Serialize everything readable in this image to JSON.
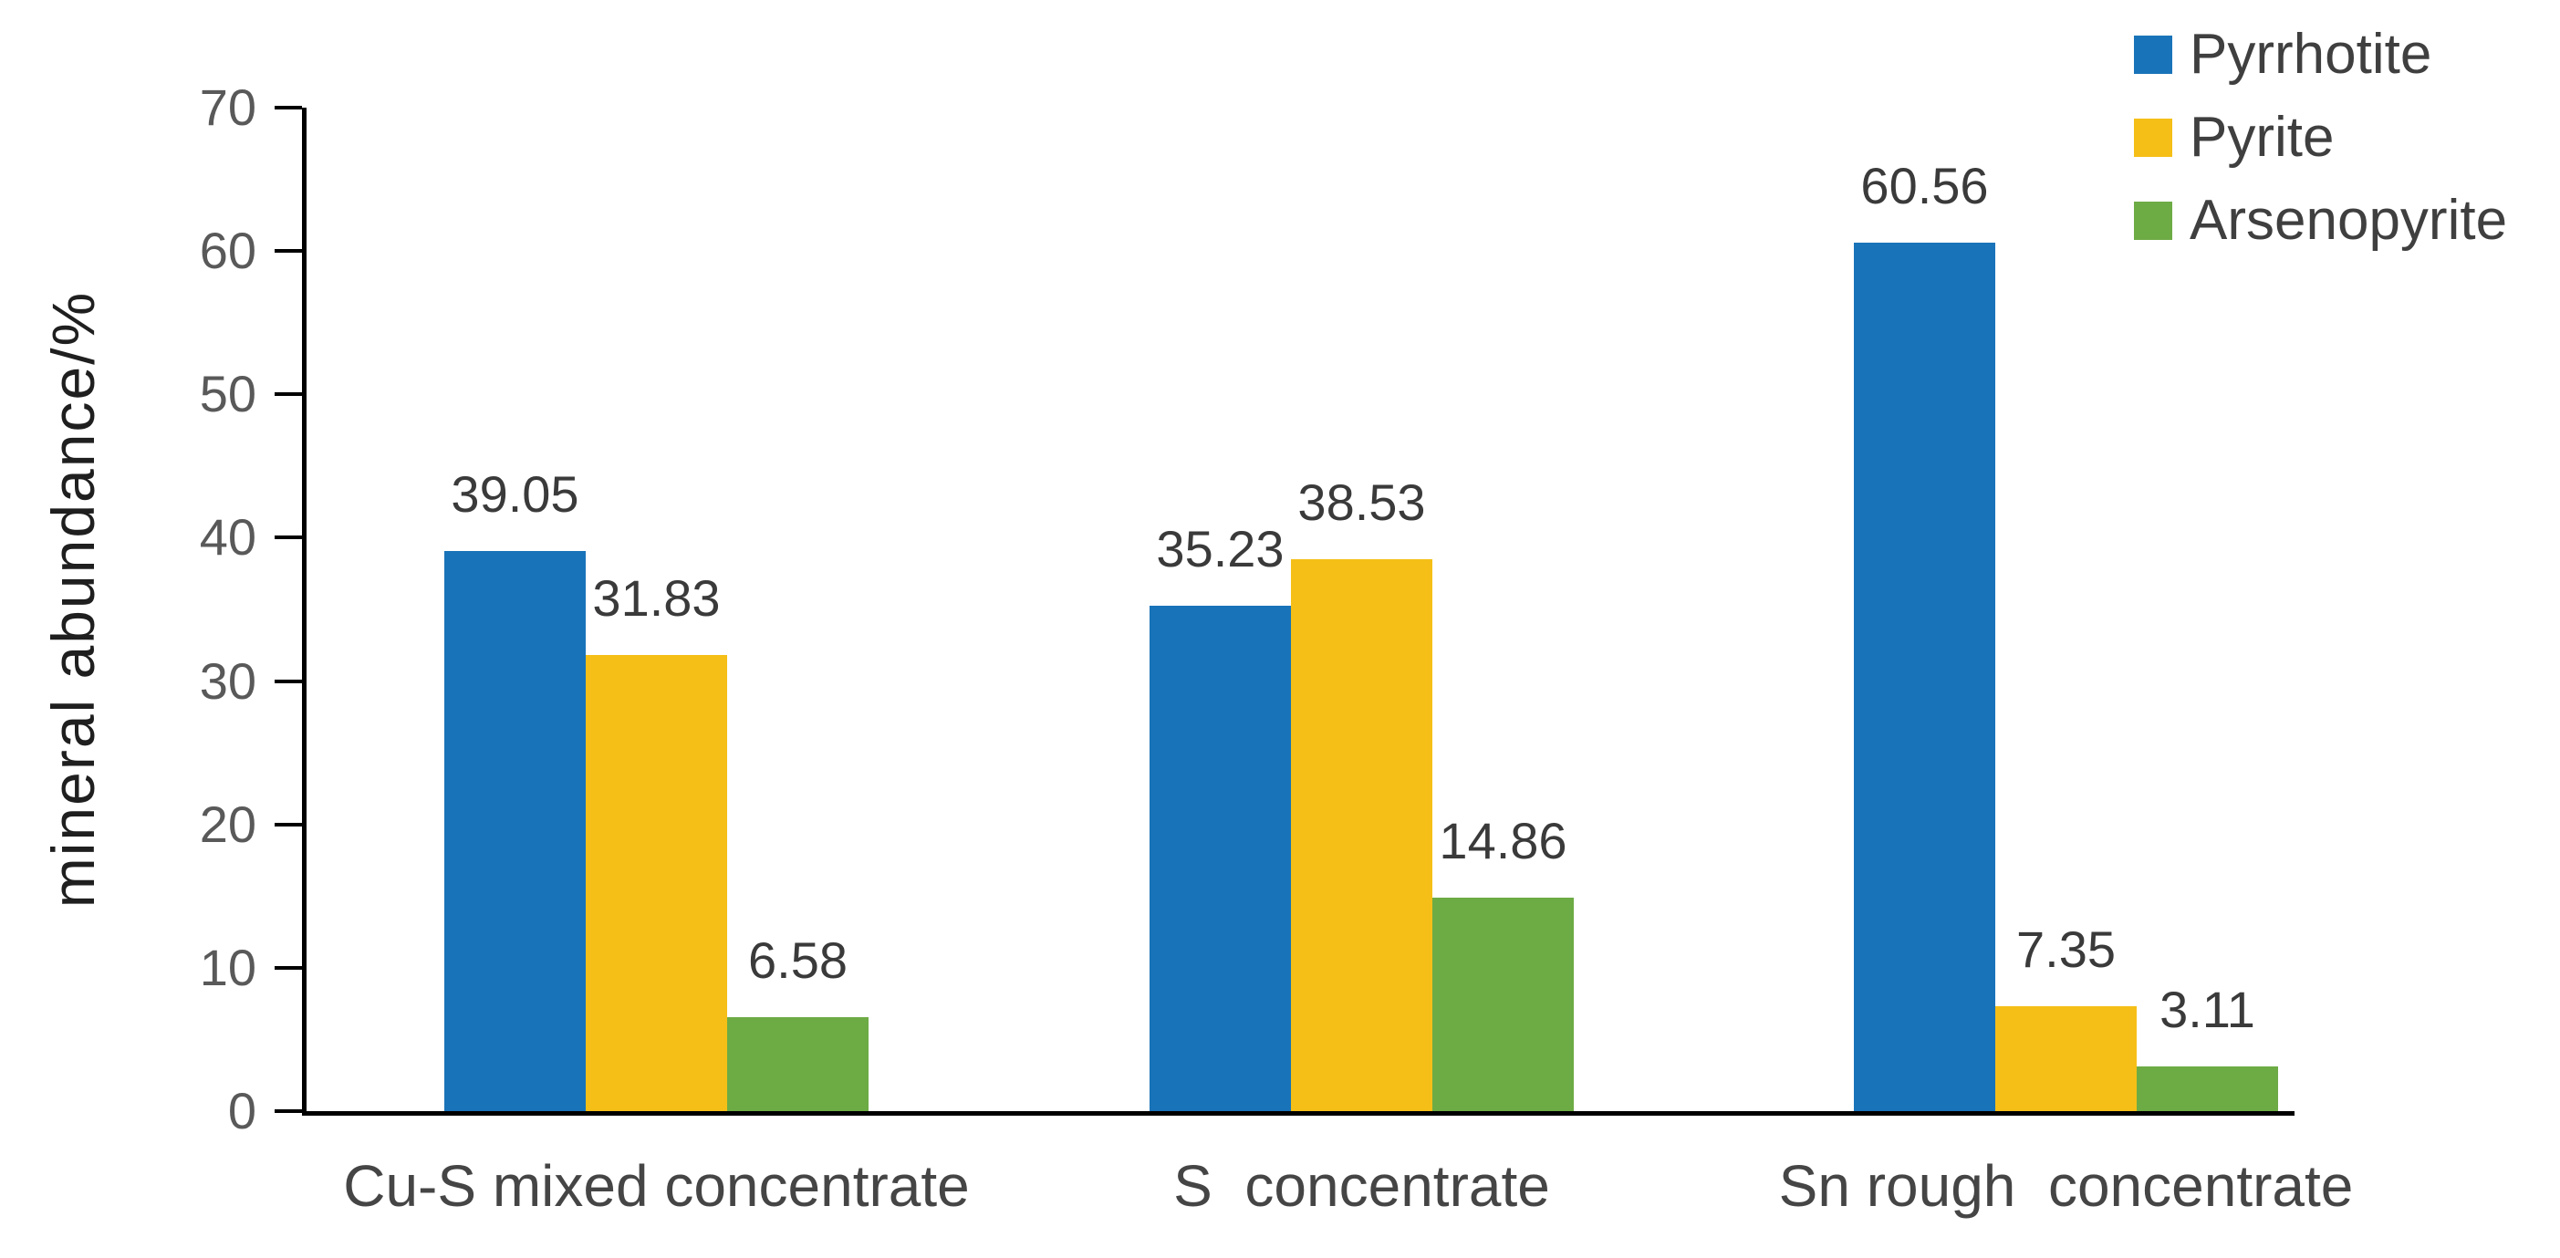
{
  "chart_data": {
    "type": "bar",
    "title": "",
    "ylabel": "mineral abundance/%",
    "xlabel": "",
    "ylim": [
      0,
      70
    ],
    "yticks": [
      0,
      10,
      20,
      30,
      40,
      50,
      60,
      70
    ],
    "grid": false,
    "legend_position": "top-right",
    "value_labels_shown": true,
    "categories": [
      "Cu-S mixed concentrate",
      "S  concentrate",
      "Sn rough  concentrate"
    ],
    "series": [
      {
        "name": "Pyrrhotite",
        "color": "#1973B9",
        "values": [
          39.05,
          35.23,
          60.56
        ]
      },
      {
        "name": "Pyrite",
        "color": "#F5BF17",
        "values": [
          31.83,
          38.53,
          7.35
        ]
      },
      {
        "name": "Arsenopyrite",
        "color": "#6DAB45",
        "values": [
          6.58,
          14.86,
          3.11
        ]
      }
    ],
    "colors": {
      "axis": "#000000",
      "tick_label": "#595959",
      "value_label": "#3A3A3A",
      "category_label": "#454545",
      "ylabel": "#1F1F1F",
      "legend_text": "#3F3F3F",
      "background": "#FFFFFF"
    }
  }
}
